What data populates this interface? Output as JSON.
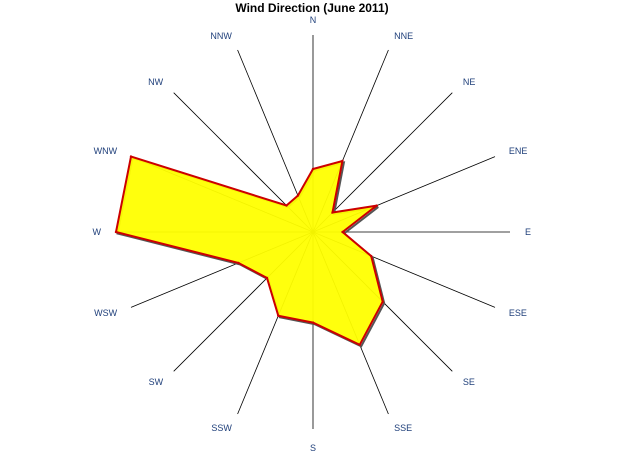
{
  "chart_data": {
    "type": "radar",
    "title": "Wind Direction (June 2011)",
    "categories": [
      "N",
      "NNE",
      "NE",
      "ENE",
      "E",
      "ESE",
      "SE",
      "SSE",
      "S",
      "SSW",
      "SW",
      "WSW",
      "W",
      "WNW",
      "NW",
      "NNW"
    ],
    "series": [
      {
        "values": [
          0.32,
          0.39,
          0.14,
          0.35,
          0.15,
          0.32,
          0.5,
          0.62,
          0.46,
          0.46,
          0.33,
          0.41,
          1.0,
          1.0,
          0.19,
          0.2
        ]
      }
    ],
    "grid": false,
    "legend": "none",
    "colors": {
      "fill": "#ffff00",
      "outline": "#cc0000",
      "spoke": "#000000",
      "label": "#1f3f7a"
    }
  }
}
